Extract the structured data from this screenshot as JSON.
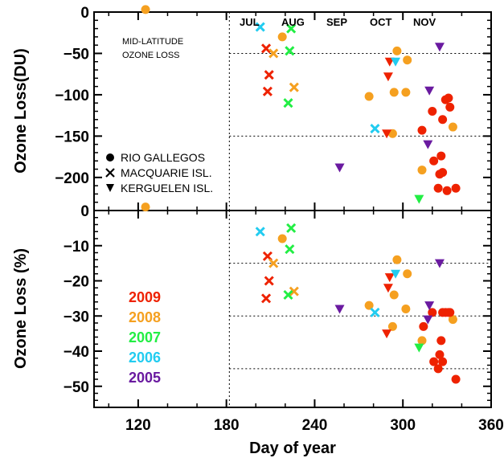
{
  "colors": {
    "2009": "#ee2200",
    "2008": "#f5a020",
    "2007": "#22ee44",
    "2006": "#22ccf0",
    "2005": "#6a1aa0"
  },
  "chart_data": [
    {
      "type": "scatter",
      "ylabel": "Ozone Loss(DU)",
      "xlim": [
        90,
        360
      ],
      "ylim": [
        -240,
        0
      ],
      "xticks": [
        "120",
        "180",
        "240",
        "300",
        "360"
      ],
      "yticks": [
        "0",
        "-50",
        "-100",
        "-150",
        "-200"
      ],
      "months": [
        "JUL",
        "AUG",
        "SEP",
        "OCT",
        "NOV"
      ],
      "vline_x": 182,
      "hlines": [
        -50,
        -150
      ],
      "annotation": [
        "MID-LATITUDE",
        "OZONE LOSS"
      ],
      "station_legend": [
        "RIO GALLEGOS",
        "MACQUARIE ISL.",
        "KERGUELEN ISL."
      ],
      "points": [
        {
          "s": "RIO GALLEGOS",
          "y": "2008",
          "x": 125,
          "v": 3
        },
        {
          "s": "RIO GALLEGOS",
          "y": "2008",
          "x": 218,
          "v": -30
        },
        {
          "s": "RIO GALLEGOS",
          "y": "2008",
          "x": 277,
          "v": -102
        },
        {
          "s": "RIO GALLEGOS",
          "y": "2008",
          "x": 293,
          "v": -147
        },
        {
          "s": "RIO GALLEGOS",
          "y": "2008",
          "x": 294,
          "v": -97
        },
        {
          "s": "RIO GALLEGOS",
          "y": "2008",
          "x": 296,
          "v": -47
        },
        {
          "s": "RIO GALLEGOS",
          "y": "2008",
          "x": 302,
          "v": -97
        },
        {
          "s": "RIO GALLEGOS",
          "y": "2008",
          "x": 303,
          "v": -58
        },
        {
          "s": "RIO GALLEGOS",
          "y": "2008",
          "x": 313,
          "v": -191
        },
        {
          "s": "RIO GALLEGOS",
          "y": "2008",
          "x": 334,
          "v": -139
        },
        {
          "s": "RIO GALLEGOS",
          "y": "2009",
          "x": 313,
          "v": -143
        },
        {
          "s": "RIO GALLEGOS",
          "y": "2009",
          "x": 320,
          "v": -120
        },
        {
          "s": "RIO GALLEGOS",
          "y": "2009",
          "x": 321,
          "v": -180
        },
        {
          "s": "RIO GALLEGOS",
          "y": "2009",
          "x": 324,
          "v": -213
        },
        {
          "s": "RIO GALLEGOS",
          "y": "2009",
          "x": 325,
          "v": -196
        },
        {
          "s": "RIO GALLEGOS",
          "y": "2009",
          "x": 326,
          "v": -174
        },
        {
          "s": "RIO GALLEGOS",
          "y": "2009",
          "x": 327,
          "v": -194
        },
        {
          "s": "RIO GALLEGOS",
          "y": "2009",
          "x": 327,
          "v": -130
        },
        {
          "s": "RIO GALLEGOS",
          "y": "2009",
          "x": 329,
          "v": -106
        },
        {
          "s": "RIO GALLEGOS",
          "y": "2009",
          "x": 330,
          "v": -216
        },
        {
          "s": "RIO GALLEGOS",
          "y": "2009",
          "x": 331,
          "v": -104
        },
        {
          "s": "RIO GALLEGOS",
          "y": "2009",
          "x": 332,
          "v": -115
        },
        {
          "s": "RIO GALLEGOS",
          "y": "2009",
          "x": 336,
          "v": -213
        },
        {
          "s": "MACQUARIE ISL.",
          "y": "2006",
          "x": 203,
          "v": -18
        },
        {
          "s": "MACQUARIE ISL.",
          "y": "2006",
          "x": 281,
          "v": -141
        },
        {
          "s": "MACQUARIE ISL.",
          "y": "2009",
          "x": 207,
          "v": -44
        },
        {
          "s": "MACQUARIE ISL.",
          "y": "2009",
          "x": 208,
          "v": -96
        },
        {
          "s": "MACQUARIE ISL.",
          "y": "2009",
          "x": 209,
          "v": -76
        },
        {
          "s": "MACQUARIE ISL.",
          "y": "2008",
          "x": 212,
          "v": -50
        },
        {
          "s": "MACQUARIE ISL.",
          "y": "2008",
          "x": 226,
          "v": -91
        },
        {
          "s": "MACQUARIE ISL.",
          "y": "2007",
          "x": 222,
          "v": -110
        },
        {
          "s": "MACQUARIE ISL.",
          "y": "2007",
          "x": 223,
          "v": -47
        },
        {
          "s": "MACQUARIE ISL.",
          "y": "2007",
          "x": 224,
          "v": -20
        },
        {
          "s": "KERGUELEN ISL.",
          "y": "2005",
          "x": 257,
          "v": -188
        },
        {
          "s": "KERGUELEN ISL.",
          "y": "2005",
          "x": 317,
          "v": -160
        },
        {
          "s": "KERGUELEN ISL.",
          "y": "2005",
          "x": 318,
          "v": -95
        },
        {
          "s": "KERGUELEN ISL.",
          "y": "2005",
          "x": 325,
          "v": -42
        },
        {
          "s": "KERGUELEN ISL.",
          "y": "2009",
          "x": 289,
          "v": -147
        },
        {
          "s": "KERGUELEN ISL.",
          "y": "2009",
          "x": 290,
          "v": -78
        },
        {
          "s": "KERGUELEN ISL.",
          "y": "2009",
          "x": 291,
          "v": -60
        },
        {
          "s": "KERGUELEN ISL.",
          "y": "2006",
          "x": 295,
          "v": -60
        },
        {
          "s": "KERGUELEN ISL.",
          "y": "2007",
          "x": 311,
          "v": -226
        }
      ]
    },
    {
      "type": "scatter",
      "xlabel": "Day of year",
      "ylabel": "Ozone Loss (%)",
      "xlim": [
        90,
        360
      ],
      "ylim": [
        -56,
        0
      ],
      "xticks": [
        "120",
        "180",
        "240",
        "300",
        "360"
      ],
      "yticks": [
        "0",
        "-10",
        "-20",
        "-30",
        "-40",
        "-50"
      ],
      "vline_x": 182,
      "hlines": [
        -15,
        -30,
        -45
      ],
      "year_legend": [
        "2009",
        "2008",
        "2007",
        "2006",
        "2005"
      ],
      "points": [
        {
          "s": "RIO GALLEGOS",
          "y": "2008",
          "x": 125,
          "v": 1
        },
        {
          "s": "RIO GALLEGOS",
          "y": "2008",
          "x": 218,
          "v": -8
        },
        {
          "s": "RIO GALLEGOS",
          "y": "2008",
          "x": 277,
          "v": -27
        },
        {
          "s": "RIO GALLEGOS",
          "y": "2008",
          "x": 293,
          "v": -33
        },
        {
          "s": "RIO GALLEGOS",
          "y": "2008",
          "x": 294,
          "v": -24
        },
        {
          "s": "RIO GALLEGOS",
          "y": "2008",
          "x": 296,
          "v": -14
        },
        {
          "s": "RIO GALLEGOS",
          "y": "2008",
          "x": 302,
          "v": -28
        },
        {
          "s": "RIO GALLEGOS",
          "y": "2008",
          "x": 303,
          "v": -18
        },
        {
          "s": "RIO GALLEGOS",
          "y": "2008",
          "x": 313,
          "v": -37
        },
        {
          "s": "RIO GALLEGOS",
          "y": "2008",
          "x": 334,
          "v": -31
        },
        {
          "s": "RIO GALLEGOS",
          "y": "2009",
          "x": 314,
          "v": -33
        },
        {
          "s": "RIO GALLEGOS",
          "y": "2009",
          "x": 320,
          "v": -29
        },
        {
          "s": "RIO GALLEGOS",
          "y": "2009",
          "x": 321,
          "v": -43
        },
        {
          "s": "RIO GALLEGOS",
          "y": "2009",
          "x": 324,
          "v": -45
        },
        {
          "s": "RIO GALLEGOS",
          "y": "2009",
          "x": 325,
          "v": -41
        },
        {
          "s": "RIO GALLEGOS",
          "y": "2009",
          "x": 326,
          "v": -37
        },
        {
          "s": "RIO GALLEGOS",
          "y": "2009",
          "x": 327,
          "v": -43
        },
        {
          "s": "RIO GALLEGOS",
          "y": "2009",
          "x": 327,
          "v": -29
        },
        {
          "s": "RIO GALLEGOS",
          "y": "2009",
          "x": 329,
          "v": -29
        },
        {
          "s": "RIO GALLEGOS",
          "y": "2009",
          "x": 331,
          "v": -29
        },
        {
          "s": "RIO GALLEGOS",
          "y": "2009",
          "x": 332,
          "v": -29
        },
        {
          "s": "RIO GALLEGOS",
          "y": "2009",
          "x": 336,
          "v": -48
        },
        {
          "s": "MACQUARIE ISL.",
          "y": "2006",
          "x": 203,
          "v": -6
        },
        {
          "s": "MACQUARIE ISL.",
          "y": "2006",
          "x": 281,
          "v": -29
        },
        {
          "s": "MACQUARIE ISL.",
          "y": "2009",
          "x": 207,
          "v": -25
        },
        {
          "s": "MACQUARIE ISL.",
          "y": "2009",
          "x": 208,
          "v": -13
        },
        {
          "s": "MACQUARIE ISL.",
          "y": "2009",
          "x": 209,
          "v": -20
        },
        {
          "s": "MACQUARIE ISL.",
          "y": "2008",
          "x": 212,
          "v": -15
        },
        {
          "s": "MACQUARIE ISL.",
          "y": "2008",
          "x": 226,
          "v": -23
        },
        {
          "s": "MACQUARIE ISL.",
          "y": "2007",
          "x": 222,
          "v": -24
        },
        {
          "s": "MACQUARIE ISL.",
          "y": "2007",
          "x": 223,
          "v": -11
        },
        {
          "s": "MACQUARIE ISL.",
          "y": "2007",
          "x": 224,
          "v": -5
        },
        {
          "s": "KERGUELEN ISL.",
          "y": "2005",
          "x": 257,
          "v": -28
        },
        {
          "s": "KERGUELEN ISL.",
          "y": "2005",
          "x": 317,
          "v": -31
        },
        {
          "s": "KERGUELEN ISL.",
          "y": "2005",
          "x": 318,
          "v": -27
        },
        {
          "s": "KERGUELEN ISL.",
          "y": "2005",
          "x": 325,
          "v": -15
        },
        {
          "s": "KERGUELEN ISL.",
          "y": "2009",
          "x": 289,
          "v": -35
        },
        {
          "s": "KERGUELEN ISL.",
          "y": "2009",
          "x": 290,
          "v": -22
        },
        {
          "s": "KERGUELEN ISL.",
          "y": "2009",
          "x": 291,
          "v": -19
        },
        {
          "s": "KERGUELEN ISL.",
          "y": "2006",
          "x": 295,
          "v": -18
        },
        {
          "s": "KERGUELEN ISL.",
          "y": "2007",
          "x": 311,
          "v": -39
        }
      ]
    }
  ]
}
